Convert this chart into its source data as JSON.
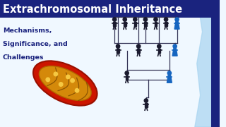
{
  "title": "Extrachromosomal Inheritance",
  "subtitle_lines": [
    "Mechanisms,",
    "Significance, and",
    "Challenges"
  ],
  "bg_color": "#f0f8ff",
  "title_bg_color": "#1a237e",
  "title_color": "#ffffff",
  "subtitle_color": "#1a237e",
  "dark_navy": "#1a237e",
  "mid_blue": "#1565c0",
  "light_blue_wave": "#a8d4f0",
  "figure_dark": "#1a1a2e",
  "figure_blue": "#1565c0",
  "line_color": "#333355"
}
